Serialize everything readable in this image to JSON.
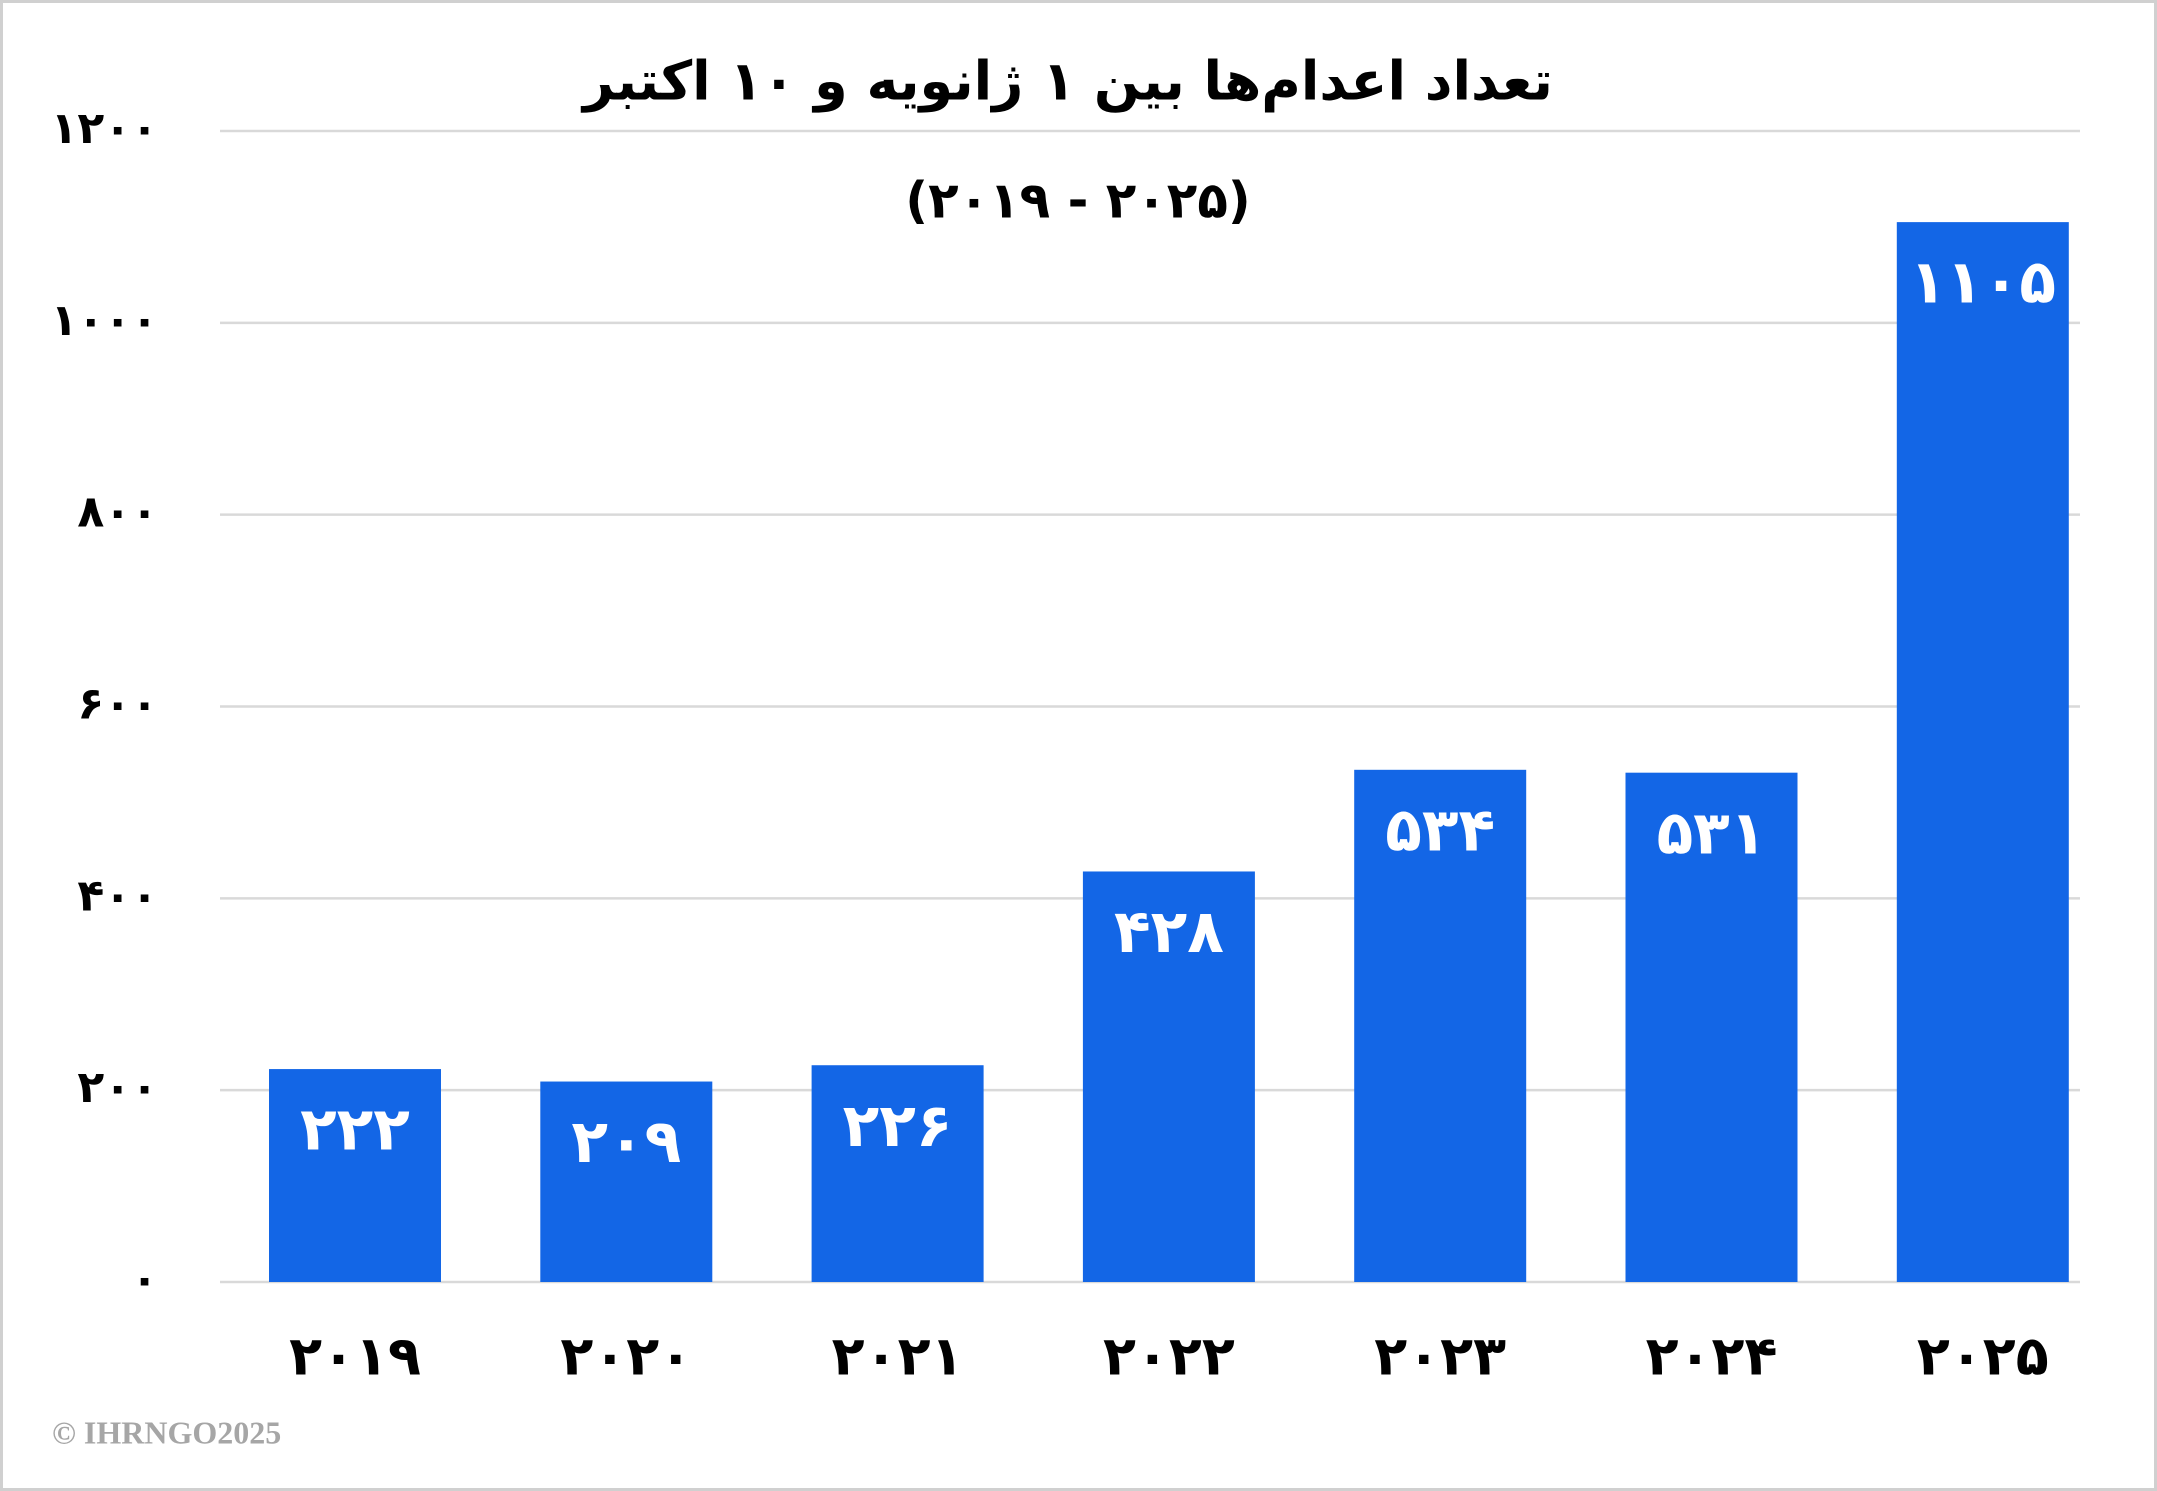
{
  "chart_data": {
    "type": "bar",
    "title": "تعداد اعدام‌ها بین ۱ ژانویه و ۱۰ اکتبر",
    "subtitle": "(۲۰۱۹ - ۲۰۲۵)",
    "categories": [
      "۲۰۱۹",
      "۲۰۲۰",
      "۲۰۲۱",
      "۲۰۲۲",
      "۲۰۲۳",
      "۲۰۲۴",
      "۲۰۲۵"
    ],
    "values": [
      222,
      209,
      226,
      428,
      534,
      531,
      1105
    ],
    "value_labels": [
      "۲۲۲",
      "۲۰۹",
      "۲۲۶",
      "۴۲۸",
      "۵۳۴",
      "۵۳۱",
      "۱۱۰۵"
    ],
    "color": "#1366e6",
    "ylim": [
      0,
      1200
    ],
    "yticks": [
      {
        "value": 0,
        "label": "۰"
      },
      {
        "value": 200,
        "label": "۲۰۰"
      },
      {
        "value": 400,
        "label": "۴۰۰"
      },
      {
        "value": 600,
        "label": "۶۰۰"
      },
      {
        "value": 800,
        "label": "۸۰۰"
      },
      {
        "value": 1000,
        "label": "۱۰۰۰"
      },
      {
        "value": 1200,
        "label": "۱۲۰۰"
      }
    ],
    "grid": true,
    "footer": "© IHRNGO2025"
  }
}
